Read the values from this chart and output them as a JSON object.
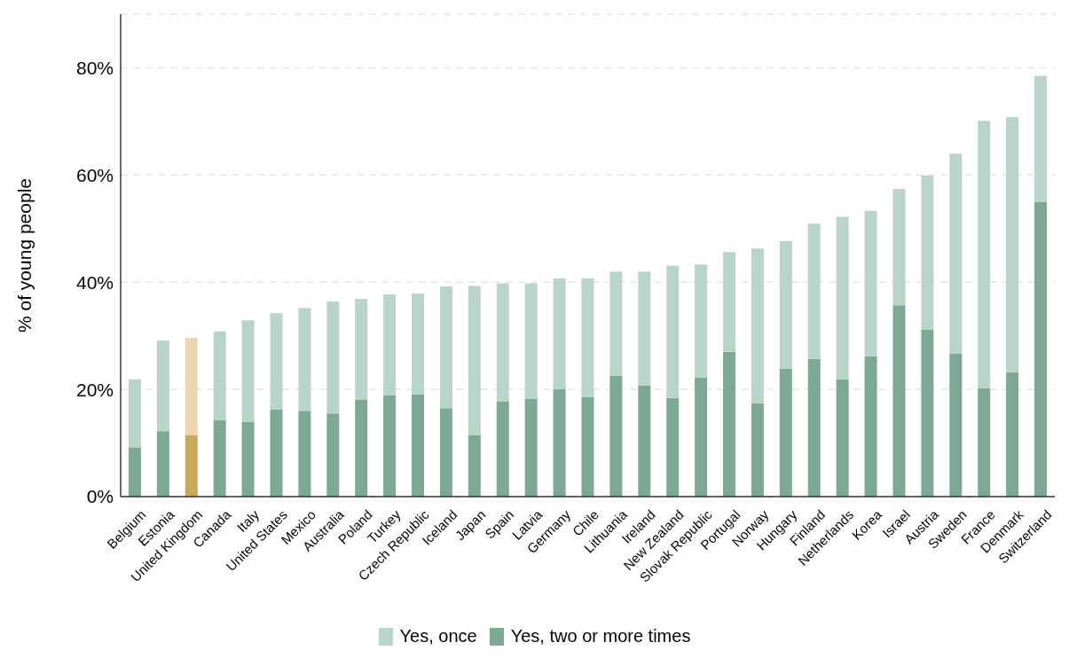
{
  "chart_data": {
    "type": "bar",
    "stacked": true,
    "ylabel": "% of young people",
    "categories": [
      "Belgium",
      "Estonia",
      "United Kingdom",
      "Canada",
      "Italy",
      "United States",
      "Mexico",
      "Australia",
      "Poland",
      "Turkey",
      "Czech Republic",
      "Iceland",
      "Japan",
      "Spain",
      "Latvia",
      "Germany",
      "Chile",
      "Lithuania",
      "Ireland",
      "New Zealand",
      "Slovak Republic",
      "Portugal",
      "Norway",
      "Hungary",
      "Finland",
      "Netherlands",
      "Korea",
      "Israel",
      "Austria",
      "Sweden",
      "France",
      "Denmark",
      "Switzerland"
    ],
    "series": [
      {
        "name": "Yes, two or more times",
        "color": "#7da892",
        "colors": [
          "#7da892",
          "#7da892",
          "#c9a85a",
          "#7da892",
          "#7da892",
          "#7da892",
          "#7da892",
          "#7da892",
          "#7da892",
          "#7da892",
          "#7da892",
          "#7da892",
          "#7da892",
          "#7da892",
          "#7da892",
          "#7da892",
          "#7da892",
          "#7da892",
          "#7da892",
          "#7da892",
          "#7da892",
          "#7da892",
          "#7da892",
          "#7da892",
          "#7da892",
          "#7da892",
          "#7da892",
          "#7da892",
          "#7da892",
          "#7da892",
          "#7da892",
          "#7da892",
          "#7da892"
        ],
        "values": [
          9.2,
          12.2,
          11.4,
          14.3,
          14.0,
          16.3,
          16.0,
          15.5,
          18.1,
          18.9,
          19.1,
          16.5,
          11.5,
          17.8,
          18.3,
          20.1,
          18.6,
          22.6,
          20.7,
          18.4,
          22.2,
          27.0,
          17.4,
          23.9,
          25.7,
          21.9,
          26.2,
          35.7,
          31.1,
          26.7,
          20.2,
          23.2,
          55.0
        ]
      },
      {
        "name": "Yes, once",
        "color": "#bad4c9",
        "colors": [
          "#bad4c9",
          "#bad4c9",
          "#edd5b0",
          "#bad4c9",
          "#bad4c9",
          "#bad4c9",
          "#bad4c9",
          "#bad4c9",
          "#bad4c9",
          "#bad4c9",
          "#bad4c9",
          "#bad4c9",
          "#bad4c9",
          "#bad4c9",
          "#bad4c9",
          "#bad4c9",
          "#bad4c9",
          "#bad4c9",
          "#bad4c9",
          "#bad4c9",
          "#bad4c9",
          "#bad4c9",
          "#bad4c9",
          "#bad4c9",
          "#bad4c9",
          "#bad4c9",
          "#bad4c9",
          "#bad4c9",
          "#bad4c9",
          "#bad4c9",
          "#bad4c9",
          "#bad4c9",
          "#bad4c9"
        ],
        "values": [
          12.7,
          16.9,
          18.2,
          16.5,
          18.9,
          17.9,
          19.2,
          20.9,
          18.8,
          18.8,
          18.8,
          22.7,
          27.8,
          22.0,
          21.5,
          20.6,
          22.1,
          19.4,
          21.3,
          24.7,
          21.1,
          18.6,
          28.9,
          23.8,
          25.2,
          30.3,
          27.1,
          21.7,
          28.8,
          37.3,
          49.9,
          47.6,
          23.5
        ]
      }
    ],
    "ylim": [
      0,
      90
    ],
    "yticks": [
      {
        "value": 0,
        "label": "0%"
      },
      {
        "value": 20,
        "label": "20%"
      },
      {
        "value": 40,
        "label": "40%"
      },
      {
        "value": 60,
        "label": "60%"
      },
      {
        "value": 80,
        "label": "80%"
      }
    ],
    "grid": "y",
    "legend": "bottom"
  }
}
